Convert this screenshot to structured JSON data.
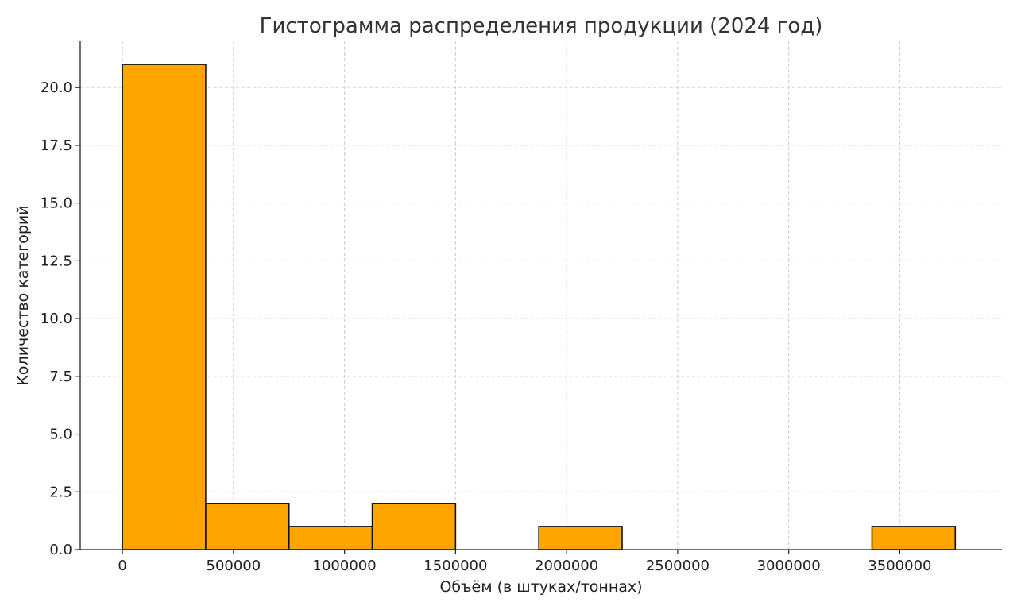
{
  "chart_data": {
    "type": "bar",
    "subtype": "histogram",
    "title": "Гистограмма распределения продукции (2024 год)",
    "xlabel": "Объём (в штуках/тоннах)",
    "ylabel": "Количество категорий",
    "xlim": [
      -190000,
      3960000
    ],
    "ylim": [
      0,
      22
    ],
    "x_ticks": [
      0,
      500000,
      1000000,
      1500000,
      2000000,
      2500000,
      3000000,
      3500000
    ],
    "x_tick_labels": [
      "0",
      "500000",
      "1000000",
      "1500000",
      "2000000",
      "2500000",
      "3000000",
      "3500000"
    ],
    "y_ticks": [
      0,
      2.5,
      5,
      7.5,
      10,
      12.5,
      15,
      17.5,
      20
    ],
    "y_tick_labels": [
      "0.0",
      "2.5",
      "5.0",
      "7.5",
      "10.0",
      "12.5",
      "15.0",
      "17.5",
      "20.0"
    ],
    "bins": [
      {
        "start": 0,
        "end": 375000,
        "count": 21
      },
      {
        "start": 375000,
        "end": 750000,
        "count": 2
      },
      {
        "start": 750000,
        "end": 1125000,
        "count": 1
      },
      {
        "start": 1125000,
        "end": 1500000,
        "count": 2
      },
      {
        "start": 1500000,
        "end": 1875000,
        "count": 0
      },
      {
        "start": 1875000,
        "end": 2250000,
        "count": 1
      },
      {
        "start": 2250000,
        "end": 2625000,
        "count": 0
      },
      {
        "start": 2625000,
        "end": 3000000,
        "count": 0
      },
      {
        "start": 3000000,
        "end": 3375000,
        "count": 0
      },
      {
        "start": 3375000,
        "end": 3750000,
        "count": 1
      }
    ],
    "grid": true,
    "bar_color": "#ffa500",
    "edge_color": "#111111"
  }
}
